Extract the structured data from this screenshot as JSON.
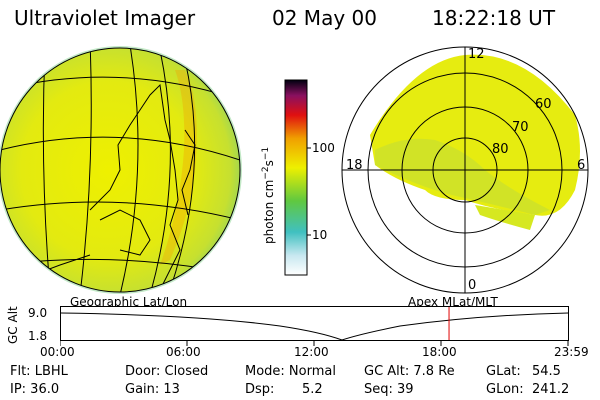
{
  "header": {
    "instrument": "Ultraviolet Imager",
    "date": "02 May 00",
    "time": "18:22:18 UT"
  },
  "colorbar": {
    "unit_label": "photon cm",
    "unit_exp1": "−2",
    "unit_mid": "s",
    "unit_exp2": "−1",
    "ticks": [
      {
        "label": "100"
      },
      {
        "label": "10"
      }
    ]
  },
  "polar_plot": {
    "mlt_labels": {
      "top": "12",
      "left": "18",
      "right": "6",
      "bottom": "0"
    },
    "lat_labels": [
      "60",
      "70",
      "80"
    ]
  },
  "timeline": {
    "left_title": "Geographic Lat/Lon",
    "right_title": "Apex MLat/MLT",
    "y_label": "GC Alt",
    "y_ticks": [
      "9.0",
      "1.8"
    ],
    "x_ticks": [
      "00:00",
      "06:00",
      "12:00",
      "18:00",
      "23:59"
    ],
    "marker_time": "18:22",
    "marker_color": "#e00000"
  },
  "info": {
    "row1": {
      "flt": "Flt: LBHL",
      "door": "Door: Closed",
      "mode": "Mode: Normal",
      "gcalt": "GC Alt: 7.8 Re",
      "glat_label": "GLat:",
      "glat_value": "54.5"
    },
    "row2": {
      "ip": "IP: 36.0",
      "gain": "Gain: 13",
      "dsp_label": "Dsp:",
      "dsp_value": "5.2",
      "seq": "Seq: 39",
      "glon_label": "GLon:",
      "glon_value": "241.2"
    }
  }
}
